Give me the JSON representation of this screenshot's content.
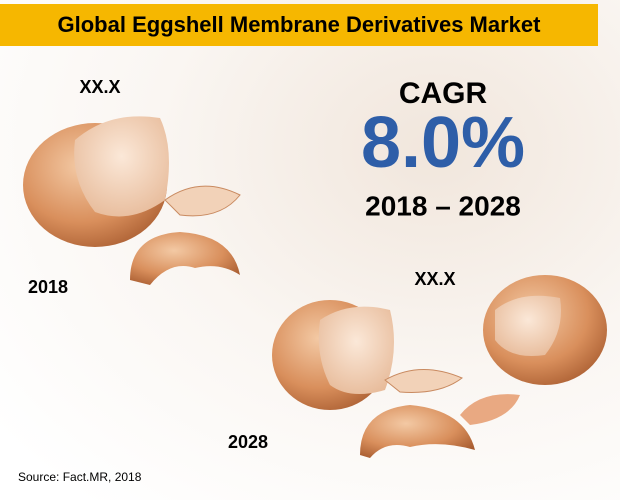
{
  "header": {
    "title": "Global Eggshell Membrane Derivatives Market"
  },
  "left_block": {
    "value": "XX.X",
    "year": "2018"
  },
  "right_block": {
    "value": "XX.X",
    "year": "2028"
  },
  "cagr": {
    "label": "CAGR",
    "rate": "8.0%",
    "period": "2018 – 2028"
  },
  "footer": {
    "source": "Source: Fact.MR, 2018"
  }
}
